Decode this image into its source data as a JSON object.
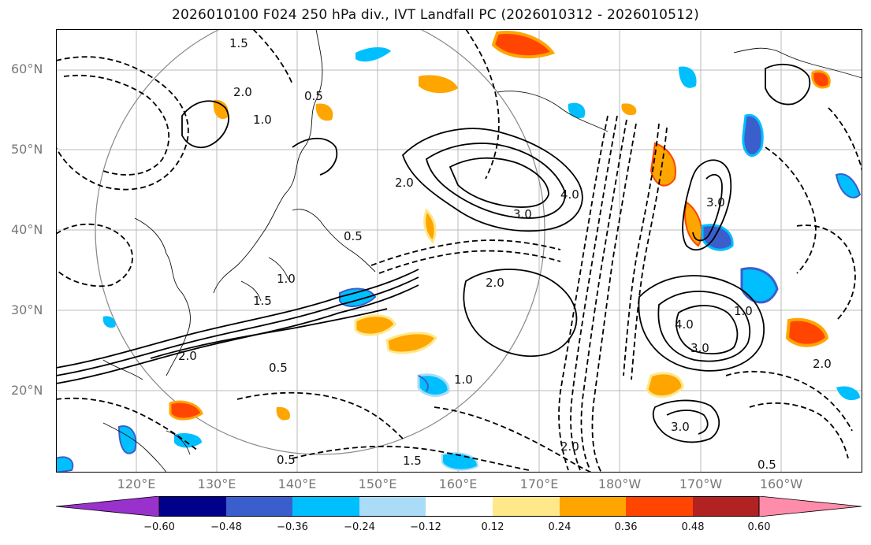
{
  "title": "2026010100 F024 250 hPa div., IVT Landfall PC (2026010312 - 2026010512)",
  "map": {
    "region": "Northwest Pacific",
    "lat_labels": [
      "60°N",
      "50°N",
      "40°N",
      "30°N",
      "20°N"
    ],
    "lon_labels": [
      "120°E",
      "130°E",
      "140°E",
      "150°E",
      "160°E",
      "170°E",
      "180°W",
      "170°W",
      "160°W"
    ],
    "contour_labels": [
      "1.5",
      "2.0",
      "0.5",
      "1.0",
      "3.0",
      "4.0",
      "0.5",
      "2.0",
      "1.0",
      "1.5",
      "3.0",
      "2.0",
      "0.5",
      "1.0",
      "4.0",
      "3.0",
      "2.0",
      "0.5",
      "1.5",
      "2.0",
      "0.5",
      "1.0",
      "2.0",
      "3.0"
    ]
  },
  "colorbar": {
    "ticks": [
      "−0.60",
      "−0.48",
      "−0.36",
      "−0.24",
      "−0.12",
      "0.12",
      "0.24",
      "0.36",
      "0.48",
      "0.60"
    ],
    "colors": [
      "#9932cc",
      "#00008b",
      "#3a5fcd",
      "#00bfff",
      "#aadcf8",
      "#ffffff",
      "#ffe88a",
      "#ffa500",
      "#ff4500",
      "#b22222",
      "#ff8caa"
    ]
  },
  "colors": {
    "neg_strong": "#3a5fcd",
    "neg": "#00bfff",
    "neg_light": "#aadcf8",
    "pos_light": "#ffe88a",
    "pos": "#ffa500",
    "pos_strong": "#ff4500",
    "pos_max": "#b22222"
  }
}
